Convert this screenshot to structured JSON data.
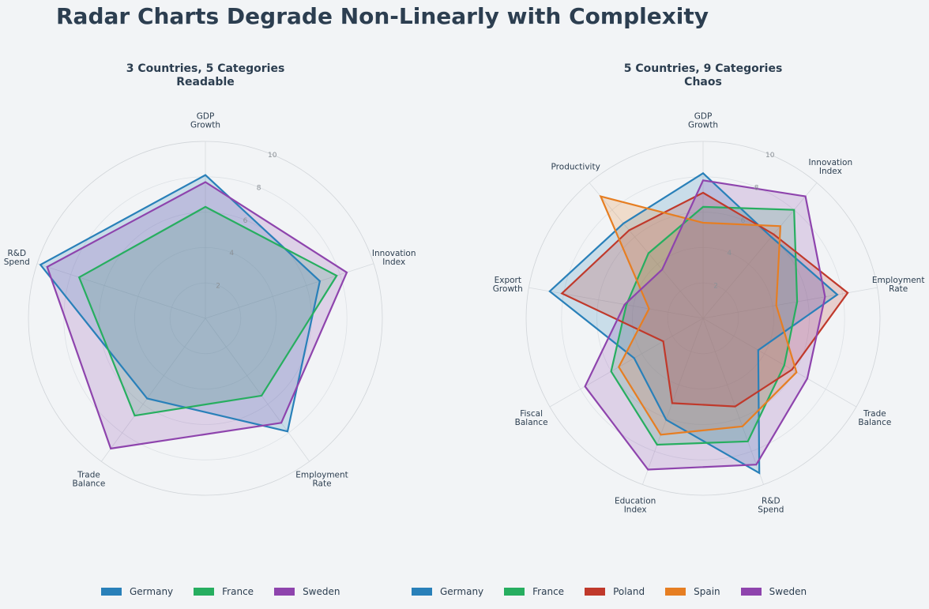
{
  "title": "Radar Charts Degrade Non-Linearly with Complexity",
  "chart_data": [
    {
      "type": "radar",
      "title": "3 Countries, 5 Categories",
      "subtitle": "Readable",
      "categories": [
        "GDP\nGrowth",
        "Innovation\nIndex",
        "Employment\nRate",
        "Trade\nBalance",
        "R&D\nSpend"
      ],
      "rlim": [
        0,
        10
      ],
      "rticks": [
        2,
        4,
        6,
        8,
        10
      ],
      "series": [
        {
          "name": "Germany",
          "color": "#2980b9",
          "values": [
            8.1,
            6.8,
            7.9,
            5.6,
            9.8
          ]
        },
        {
          "name": "France",
          "color": "#27ae60",
          "values": [
            6.3,
            7.8,
            5.4,
            6.8,
            7.5
          ]
        },
        {
          "name": "Sweden",
          "color": "#8e44ad",
          "values": [
            7.7,
            8.4,
            7.3,
            9.1,
            9.4
          ]
        }
      ],
      "legend": [
        "Germany",
        "France",
        "Sweden"
      ]
    },
    {
      "type": "radar",
      "title": "5 Countries, 9 Categories",
      "subtitle": "Chaos",
      "categories": [
        "GDP\nGrowth",
        "Innovation\nIndex",
        "Employment\nRate",
        "Trade\nBalance",
        "R&D\nSpend",
        "Education\nIndex",
        "Fiscal\nBalance",
        "Export\nGrowth",
        "Productivity"
      ],
      "rlim": [
        0,
        10
      ],
      "rticks": [
        2,
        4,
        6,
        8,
        10
      ],
      "series": [
        {
          "name": "Germany",
          "color": "#2980b9",
          "values": [
            8.2,
            6.0,
            7.7,
            3.6,
            9.3,
            6.1,
            4.5,
            8.8,
            7.0
          ]
        },
        {
          "name": "France",
          "color": "#27ae60",
          "values": [
            6.3,
            8.0,
            5.4,
            5.3,
            7.4,
            7.6,
            6.0,
            4.4,
            4.8
          ]
        },
        {
          "name": "Poland",
          "color": "#c0392b",
          "values": [
            7.1,
            6.2,
            8.3,
            5.8,
            5.3,
            5.1,
            2.6,
            8.1,
            6.5
          ]
        },
        {
          "name": "Spain",
          "color": "#e67e22",
          "values": [
            5.4,
            6.8,
            4.2,
            6.1,
            6.5,
            7.0,
            5.5,
            3.1,
            9.0
          ]
        },
        {
          "name": "Sweden",
          "color": "#8e44ad",
          "values": [
            7.8,
            9.0,
            7.0,
            6.8,
            8.8,
            9.1,
            7.7,
            4.5,
            3.6
          ]
        }
      ],
      "legend": [
        "Germany",
        "France",
        "Poland",
        "Spain",
        "Sweden"
      ]
    }
  ]
}
